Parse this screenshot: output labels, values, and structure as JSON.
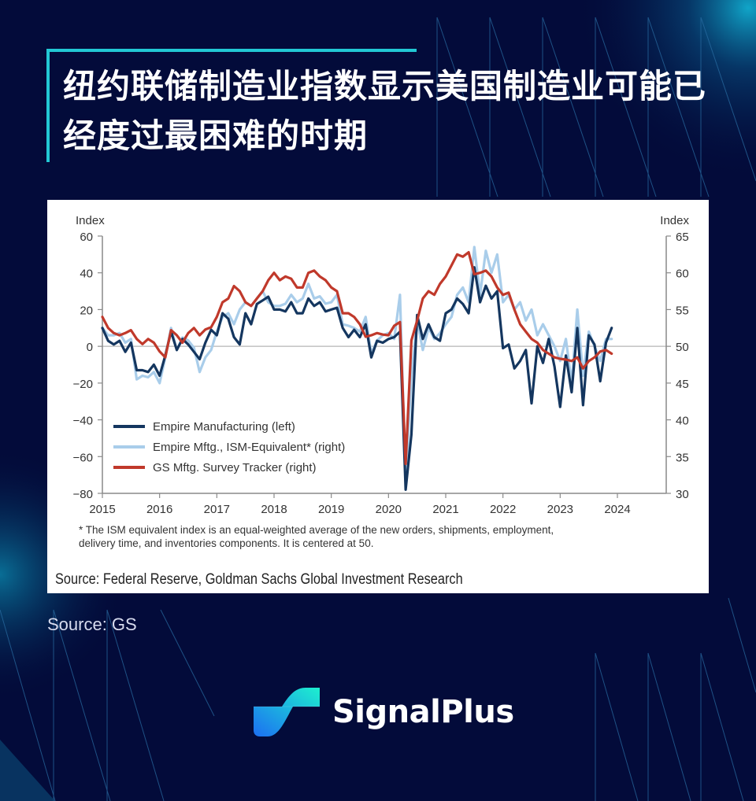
{
  "header": {
    "title": "纽约联储制造业指数显示美国制造业可能已经度过最困难的时期"
  },
  "card": {
    "footnote_line1": "* The ISM equivalent index is an equal-weighted average of the new orders, shipments, employment,",
    "footnote_line2": "delivery time, and inventories components. It is centered at 50.",
    "source": "Source: Federal Reserve, Goldman Sachs Global Investment Research"
  },
  "page_source": "Source: GS",
  "brand": {
    "name": "SignalPlus"
  },
  "colors": {
    "background": "#030b3a",
    "accent": "#22c8d4",
    "empire": "#14365f",
    "ism_equiv": "#a9cdea",
    "gs_tracker": "#c0392b"
  },
  "chart_data": {
    "type": "line",
    "title": "",
    "xlabel": "",
    "ylabel_left": "Index",
    "ylabel_right": "Index",
    "ylim_left": [
      -80,
      60
    ],
    "ylim_right": [
      30,
      65
    ],
    "yticks_left": [
      60,
      40,
      20,
      0,
      -20,
      -40,
      -60,
      -80
    ],
    "yticks_right": [
      65,
      60,
      55,
      50,
      45,
      40,
      35,
      30
    ],
    "xticks": [
      "2015",
      "2016",
      "2017",
      "2018",
      "2019",
      "2020",
      "2021",
      "2022",
      "2023",
      "2024"
    ],
    "xlim": [
      2015,
      2024.9
    ],
    "legend_position": "lower-left",
    "grid": false,
    "series": [
      {
        "name": "Empire Manufacturing (left)",
        "axis": "left",
        "x": [
          2015.0,
          2015.1,
          2015.2,
          2015.3,
          2015.4,
          2015.5,
          2015.6,
          2015.7,
          2015.8,
          2015.9,
          2016.0,
          2016.1,
          2016.2,
          2016.3,
          2016.4,
          2016.5,
          2016.6,
          2016.7,
          2016.8,
          2016.9,
          2017.0,
          2017.1,
          2017.2,
          2017.3,
          2017.4,
          2017.5,
          2017.6,
          2017.7,
          2017.8,
          2017.9,
          2018.0,
          2018.1,
          2018.2,
          2018.3,
          2018.4,
          2018.5,
          2018.6,
          2018.7,
          2018.8,
          2018.9,
          2019.0,
          2019.1,
          2019.2,
          2019.3,
          2019.4,
          2019.5,
          2019.6,
          2019.7,
          2019.8,
          2019.9,
          2020.0,
          2020.1,
          2020.2,
          2020.3,
          2020.4,
          2020.5,
          2020.6,
          2020.7,
          2020.8,
          2020.9,
          2021.0,
          2021.1,
          2021.2,
          2021.3,
          2021.4,
          2021.5,
          2021.6,
          2021.7,
          2021.8,
          2021.9,
          2022.0,
          2022.1,
          2022.2,
          2022.3,
          2022.4,
          2022.5,
          2022.6,
          2022.7,
          2022.8,
          2022.9,
          2023.0,
          2023.1,
          2023.2,
          2023.3,
          2023.4,
          2023.5,
          2023.6,
          2023.7,
          2023.8,
          2023.9
        ],
        "values": [
          10,
          3,
          1,
          3,
          -3,
          2,
          -13,
          -13,
          -14,
          -10,
          -16,
          -5,
          8,
          -2,
          4,
          1,
          -3,
          -7,
          2,
          9,
          6,
          18,
          15,
          5,
          1,
          18,
          12,
          23,
          25,
          27,
          20,
          20,
          19,
          24,
          18,
          18,
          26,
          22,
          24,
          19,
          20,
          21,
          10,
          5,
          9,
          5,
          12,
          -6,
          3,
          2,
          4,
          5,
          8,
          -78,
          -48,
          17,
          4,
          12,
          5,
          3,
          18,
          20,
          26,
          23,
          18,
          43,
          24,
          33,
          26,
          30,
          -1,
          1,
          -12,
          -8,
          -2,
          -31,
          0,
          -9,
          4,
          -11,
          -33,
          -5,
          -25,
          10,
          -32,
          6,
          1,
          -19,
          2,
          10
        ]
      },
      {
        "name": "Empire Mftg., ISM-Equivalent* (right)",
        "axis": "right",
        "x": [
          2015.0,
          2015.1,
          2015.2,
          2015.3,
          2015.4,
          2015.5,
          2015.6,
          2015.7,
          2015.8,
          2015.9,
          2016.0,
          2016.1,
          2016.2,
          2016.3,
          2016.4,
          2016.5,
          2016.6,
          2016.7,
          2016.8,
          2016.9,
          2017.0,
          2017.1,
          2017.2,
          2017.3,
          2017.4,
          2017.5,
          2017.6,
          2017.7,
          2017.8,
          2017.9,
          2018.0,
          2018.1,
          2018.2,
          2018.3,
          2018.4,
          2018.5,
          2018.6,
          2018.7,
          2018.8,
          2018.9,
          2019.0,
          2019.1,
          2019.2,
          2019.3,
          2019.4,
          2019.5,
          2019.6,
          2019.7,
          2019.8,
          2019.9,
          2020.0,
          2020.1,
          2020.2,
          2020.3,
          2020.4,
          2020.5,
          2020.6,
          2020.7,
          2020.8,
          2020.9,
          2021.0,
          2021.1,
          2021.2,
          2021.3,
          2021.4,
          2021.5,
          2021.6,
          2021.7,
          2021.8,
          2021.9,
          2022.0,
          2022.1,
          2022.2,
          2022.3,
          2022.4,
          2022.5,
          2022.6,
          2022.7,
          2022.8,
          2022.9,
          2023.0,
          2023.1,
          2023.2,
          2023.3,
          2023.4,
          2023.5,
          2023.6,
          2023.7,
          2023.8,
          2023.9
        ],
        "values": [
          52.5,
          51.5,
          51.5,
          51.8,
          50.5,
          51,
          45.5,
          46,
          45.8,
          46.5,
          45,
          48.5,
          52.5,
          49.5,
          51.2,
          50.8,
          49.8,
          46.5,
          48.5,
          49.5,
          52,
          54,
          54.5,
          53,
          55,
          56,
          55.5,
          56.5,
          57.5,
          56,
          55.5,
          55.5,
          55.8,
          57,
          56,
          56.5,
          58.5,
          56.5,
          56.8,
          55.8,
          56,
          57,
          53,
          52.8,
          52.5,
          52,
          54,
          49,
          50.8,
          51.5,
          51.8,
          51,
          57,
          31.5,
          46,
          53.5,
          49.5,
          52.5,
          51,
          51.8,
          53,
          54,
          57,
          58,
          56,
          63.5,
          57,
          63,
          60,
          62.5,
          56,
          57,
          55,
          56,
          53.5,
          55,
          51.5,
          53,
          51.5,
          50,
          48,
          51,
          45,
          55,
          46,
          52,
          50,
          48,
          51,
          51
        ]
      },
      {
        "name": "GS Mftg. Survey Tracker (right)",
        "axis": "right",
        "x": [
          2015.0,
          2015.1,
          2015.2,
          2015.3,
          2015.4,
          2015.5,
          2015.6,
          2015.7,
          2015.8,
          2015.9,
          2016.0,
          2016.1,
          2016.2,
          2016.3,
          2016.4,
          2016.5,
          2016.6,
          2016.7,
          2016.8,
          2016.9,
          2017.0,
          2017.1,
          2017.2,
          2017.3,
          2017.4,
          2017.5,
          2017.6,
          2017.7,
          2017.8,
          2017.9,
          2018.0,
          2018.1,
          2018.2,
          2018.3,
          2018.4,
          2018.5,
          2018.6,
          2018.7,
          2018.8,
          2018.9,
          2019.0,
          2019.1,
          2019.2,
          2019.3,
          2019.4,
          2019.5,
          2019.6,
          2019.7,
          2019.8,
          2019.9,
          2020.0,
          2020.1,
          2020.2,
          2020.3,
          2020.4,
          2020.5,
          2020.6,
          2020.7,
          2020.8,
          2020.9,
          2021.0,
          2021.1,
          2021.2,
          2021.3,
          2021.4,
          2021.5,
          2021.6,
          2021.7,
          2021.8,
          2021.9,
          2022.0,
          2022.1,
          2022.2,
          2022.3,
          2022.4,
          2022.5,
          2022.6,
          2022.7,
          2022.8,
          2022.9,
          2023.0,
          2023.1,
          2023.2,
          2023.3,
          2023.4,
          2023.5,
          2023.6,
          2023.7,
          2023.8,
          2023.9
        ],
        "values": [
          54,
          52.5,
          51.8,
          51.5,
          51.8,
          52.2,
          51,
          50.3,
          51,
          50.5,
          49.3,
          48.5,
          52.2,
          51.5,
          50.5,
          51.8,
          52.5,
          51.5,
          52.3,
          52.6,
          54,
          56,
          56.5,
          58.2,
          57.5,
          56,
          55.5,
          56.5,
          57.5,
          59,
          60,
          59,
          59.5,
          59.2,
          58,
          58,
          60,
          60.3,
          59.5,
          59,
          58,
          57.5,
          54.5,
          54.5,
          54,
          53,
          51.3,
          51.5,
          51.8,
          51.6,
          51.5,
          52.8,
          53.3,
          34,
          50.8,
          53.5,
          56.5,
          57.5,
          57,
          58.5,
          59.5,
          61,
          62.5,
          62.2,
          62.8,
          59.8,
          60,
          60.3,
          59.5,
          58,
          57,
          57.3,
          55,
          53,
          52,
          51,
          50.5,
          49.5,
          49,
          48.5,
          48.3,
          48.2,
          48,
          48.5,
          47,
          48,
          48.5,
          49.3,
          49.5,
          49
        ]
      }
    ],
    "footnote": "* The ISM equivalent index is an equal-weighted average of the new orders, shipments, employment, delivery time, and inventories components. It is centered at 50.",
    "source": "Source: Federal Reserve, Goldman Sachs Global Investment Research"
  }
}
